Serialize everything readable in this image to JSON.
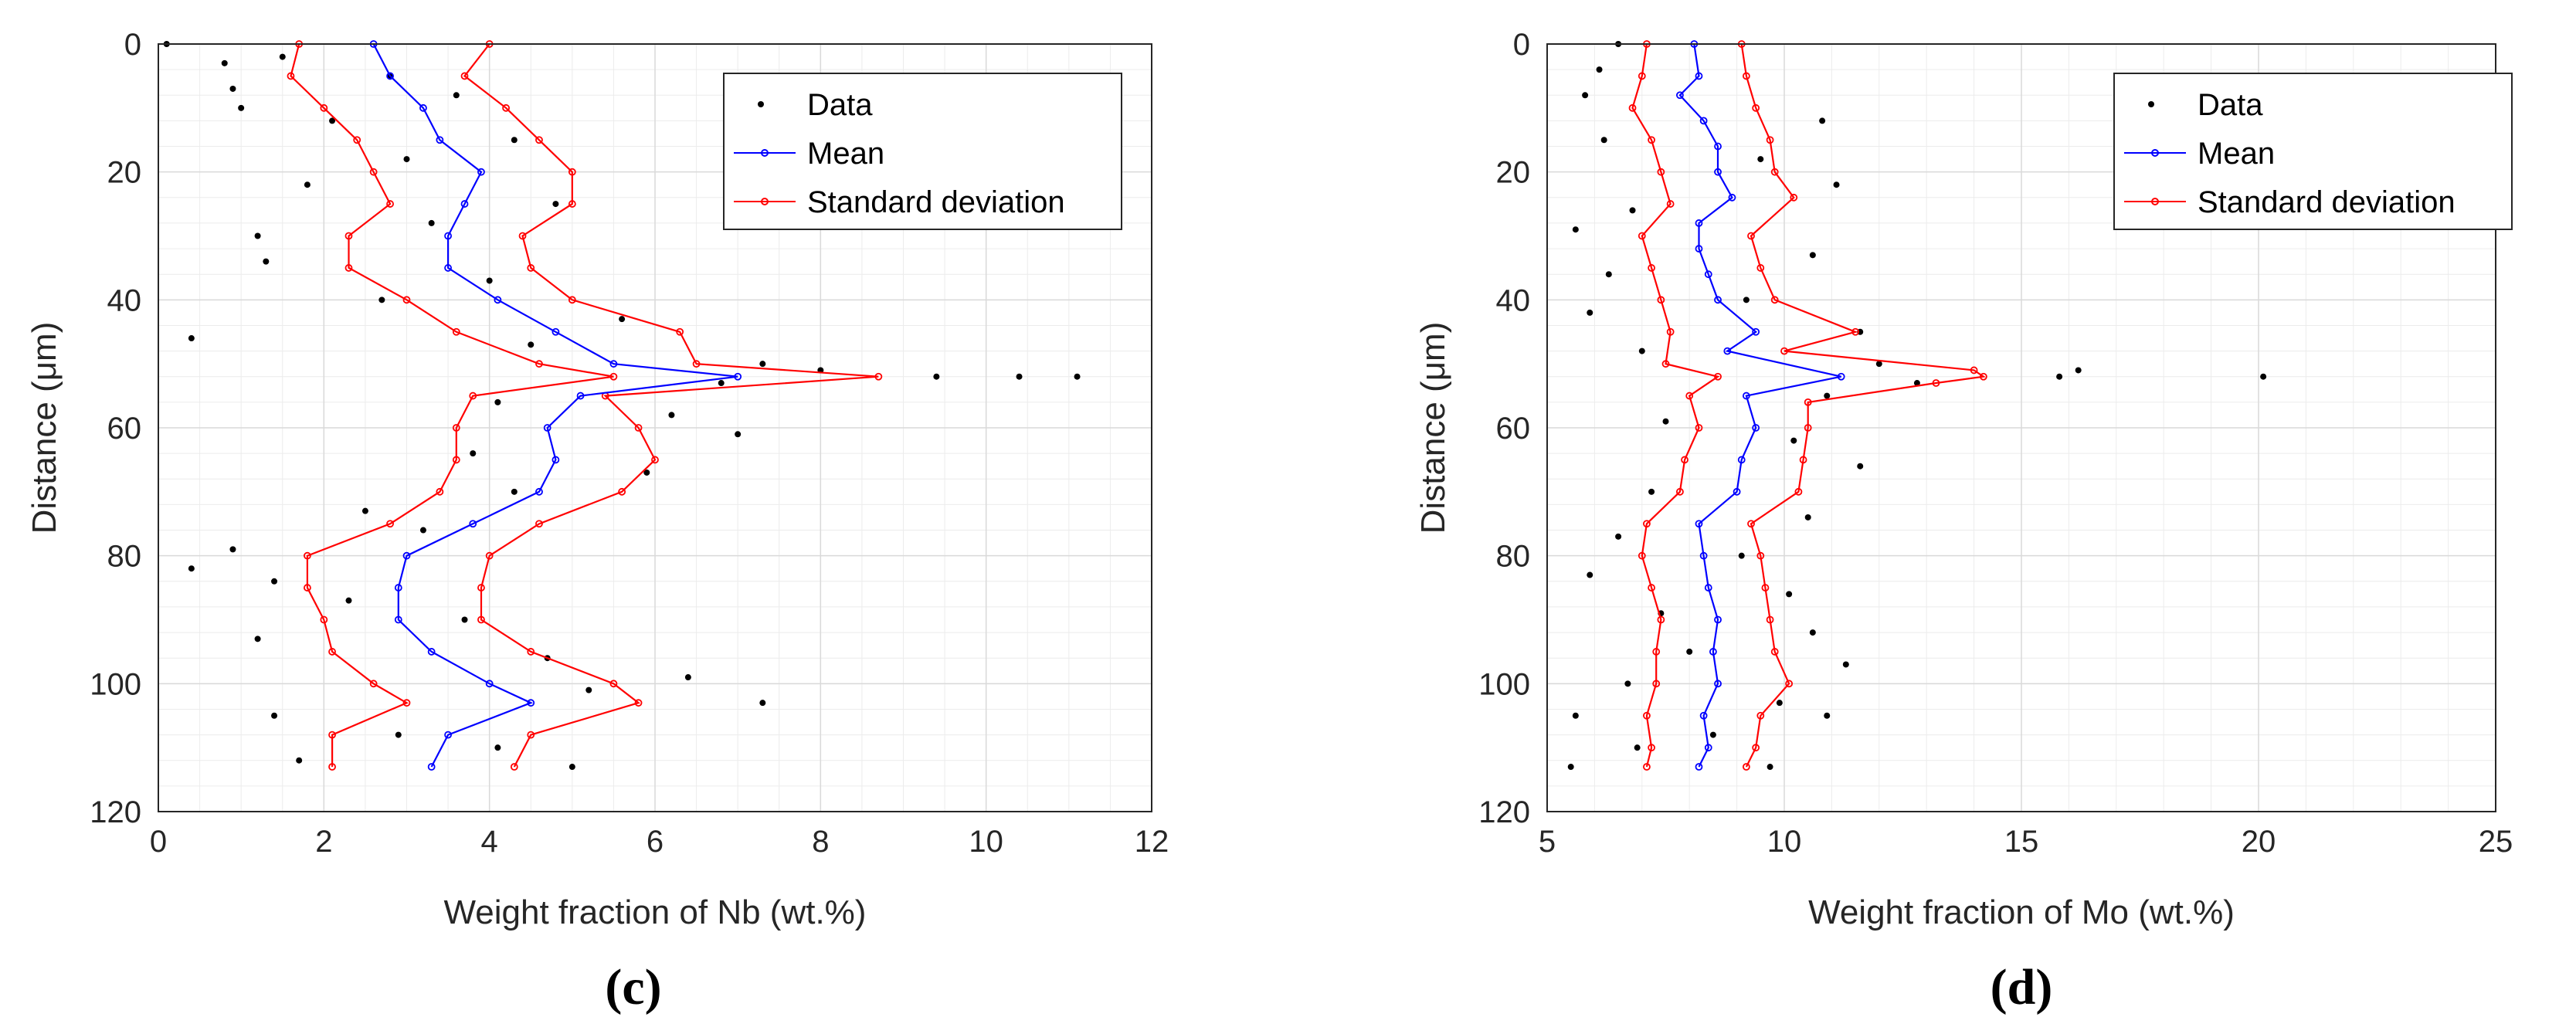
{
  "chart_data": [
    {
      "type": "scatter",
      "panel_label": "(c)",
      "xlabel": "Weight fraction of Nb (wt.%)",
      "ylabel": "Distance (μm)",
      "xlim": [
        0,
        12
      ],
      "ylim": [
        0,
        120
      ],
      "y_reversed": true,
      "xticks": [
        0,
        2,
        4,
        6,
        8,
        10,
        12
      ],
      "yticks": [
        0,
        20,
        40,
        60,
        80,
        100,
        120
      ],
      "grid": true,
      "minor_grid": true,
      "legend": {
        "location": "top-right",
        "entries": [
          "Data",
          "Mean",
          "Standard deviation"
        ]
      },
      "colors": {
        "data": "#000000",
        "mean": "#0000ff",
        "std": "#ff0000"
      },
      "mean_profile": [
        {
          "y": 0,
          "x": 2.6
        },
        {
          "y": 5,
          "x": 2.8
        },
        {
          "y": 10,
          "x": 3.2
        },
        {
          "y": 15,
          "x": 3.4
        },
        {
          "y": 20,
          "x": 3.9
        },
        {
          "y": 25,
          "x": 3.7
        },
        {
          "y": 30,
          "x": 3.5
        },
        {
          "y": 35,
          "x": 3.5
        },
        {
          "y": 40,
          "x": 4.1
        },
        {
          "y": 45,
          "x": 4.8
        },
        {
          "y": 50,
          "x": 5.5
        },
        {
          "y": 52,
          "x": 7.0
        },
        {
          "y": 55,
          "x": 5.1
        },
        {
          "y": 60,
          "x": 4.7
        },
        {
          "y": 65,
          "x": 4.8
        },
        {
          "y": 70,
          "x": 4.6
        },
        {
          "y": 75,
          "x": 3.8
        },
        {
          "y": 80,
          "x": 3.0
        },
        {
          "y": 85,
          "x": 2.9
        },
        {
          "y": 90,
          "x": 2.9
        },
        {
          "y": 95,
          "x": 3.3
        },
        {
          "y": 100,
          "x": 4.0
        },
        {
          "y": 103,
          "x": 4.5
        },
        {
          "y": 108,
          "x": 3.5
        },
        {
          "y": 113,
          "x": 3.3
        }
      ],
      "std_lower": [
        {
          "y": 0,
          "x": 1.7
        },
        {
          "y": 5,
          "x": 1.6
        },
        {
          "y": 10,
          "x": 2.0
        },
        {
          "y": 15,
          "x": 2.4
        },
        {
          "y": 20,
          "x": 2.6
        },
        {
          "y": 25,
          "x": 2.8
        },
        {
          "y": 30,
          "x": 2.3
        },
        {
          "y": 35,
          "x": 2.3
        },
        {
          "y": 40,
          "x": 3.0
        },
        {
          "y": 45,
          "x": 3.6
        },
        {
          "y": 50,
          "x": 4.6
        },
        {
          "y": 52,
          "x": 5.5
        },
        {
          "y": 55,
          "x": 3.8
        },
        {
          "y": 60,
          "x": 3.6
        },
        {
          "y": 65,
          "x": 3.6
        },
        {
          "y": 70,
          "x": 3.4
        },
        {
          "y": 75,
          "x": 2.8
        },
        {
          "y": 80,
          "x": 1.8
        },
        {
          "y": 85,
          "x": 1.8
        },
        {
          "y": 90,
          "x": 2.0
        },
        {
          "y": 95,
          "x": 2.1
        },
        {
          "y": 100,
          "x": 2.6
        },
        {
          "y": 103,
          "x": 3.0
        },
        {
          "y": 108,
          "x": 2.1
        },
        {
          "y": 113,
          "x": 2.1
        }
      ],
      "std_upper": [
        {
          "y": 0,
          "x": 4.0
        },
        {
          "y": 5,
          "x": 3.7
        },
        {
          "y": 10,
          "x": 4.2
        },
        {
          "y": 15,
          "x": 4.6
        },
        {
          "y": 20,
          "x": 5.0
        },
        {
          "y": 25,
          "x": 5.0
        },
        {
          "y": 30,
          "x": 4.4
        },
        {
          "y": 35,
          "x": 4.5
        },
        {
          "y": 40,
          "x": 5.0
        },
        {
          "y": 45,
          "x": 6.3
        },
        {
          "y": 50,
          "x": 6.5
        },
        {
          "y": 52,
          "x": 8.7
        },
        {
          "y": 55,
          "x": 5.4
        },
        {
          "y": 60,
          "x": 5.8
        },
        {
          "y": 65,
          "x": 6.0
        },
        {
          "y": 70,
          "x": 5.6
        },
        {
          "y": 75,
          "x": 4.6
        },
        {
          "y": 80,
          "x": 4.0
        },
        {
          "y": 85,
          "x": 3.9
        },
        {
          "y": 90,
          "x": 3.9
        },
        {
          "y": 95,
          "x": 4.5
        },
        {
          "y": 100,
          "x": 5.5
        },
        {
          "y": 103,
          "x": 5.8
        },
        {
          "y": 108,
          "x": 4.5
        },
        {
          "y": 113,
          "x": 4.3
        }
      ],
      "scatter": [
        {
          "y": 0,
          "x": 0.1
        },
        {
          "y": 3,
          "x": 0.8
        },
        {
          "y": 7,
          "x": 0.9
        },
        {
          "y": 10,
          "x": 1.0
        },
        {
          "y": 2,
          "x": 1.5
        },
        {
          "y": 5,
          "x": 2.8
        },
        {
          "y": 8,
          "x": 3.6
        },
        {
          "y": 12,
          "x": 2.1
        },
        {
          "y": 15,
          "x": 4.3
        },
        {
          "y": 18,
          "x": 3.0
        },
        {
          "y": 22,
          "x": 1.8
        },
        {
          "y": 25,
          "x": 4.8
        },
        {
          "y": 28,
          "x": 3.3
        },
        {
          "y": 30,
          "x": 1.2
        },
        {
          "y": 34,
          "x": 1.3
        },
        {
          "y": 37,
          "x": 4.0
        },
        {
          "y": 40,
          "x": 2.7
        },
        {
          "y": 43,
          "x": 5.6
        },
        {
          "y": 46,
          "x": 0.4
        },
        {
          "y": 47,
          "x": 4.5
        },
        {
          "y": 50,
          "x": 7.3
        },
        {
          "y": 51,
          "x": 8.0
        },
        {
          "y": 52,
          "x": 9.4
        },
        {
          "y": 52,
          "x": 10.4
        },
        {
          "y": 52,
          "x": 11.1
        },
        {
          "y": 53,
          "x": 6.8
        },
        {
          "y": 56,
          "x": 4.1
        },
        {
          "y": 58,
          "x": 6.2
        },
        {
          "y": 61,
          "x": 7.0
        },
        {
          "y": 64,
          "x": 3.8
        },
        {
          "y": 67,
          "x": 5.9
        },
        {
          "y": 70,
          "x": 4.3
        },
        {
          "y": 73,
          "x": 2.5
        },
        {
          "y": 76,
          "x": 3.2
        },
        {
          "y": 79,
          "x": 0.9
        },
        {
          "y": 82,
          "x": 0.4
        },
        {
          "y": 84,
          "x": 1.4
        },
        {
          "y": 87,
          "x": 2.3
        },
        {
          "y": 90,
          "x": 3.7
        },
        {
          "y": 93,
          "x": 1.2
        },
        {
          "y": 96,
          "x": 4.7
        },
        {
          "y": 99,
          "x": 6.4
        },
        {
          "y": 101,
          "x": 5.2
        },
        {
          "y": 103,
          "x": 7.3
        },
        {
          "y": 105,
          "x": 1.4
        },
        {
          "y": 108,
          "x": 2.9
        },
        {
          "y": 110,
          "x": 4.1
        },
        {
          "y": 112,
          "x": 1.7
        },
        {
          "y": 113,
          "x": 5.0
        }
      ]
    },
    {
      "type": "scatter",
      "panel_label": "(d)",
      "xlabel": "Weight fraction of Mo (wt.%)",
      "ylabel": "Distance (μm)",
      "xlim": [
        5,
        25
      ],
      "ylim": [
        0,
        120
      ],
      "y_reversed": true,
      "xticks": [
        5,
        10,
        15,
        20,
        25
      ],
      "yticks": [
        0,
        20,
        40,
        60,
        80,
        100,
        120
      ],
      "grid": true,
      "minor_grid": true,
      "legend": {
        "location": "top-right",
        "entries": [
          "Data",
          "Mean",
          "Standard deviation"
        ]
      },
      "colors": {
        "data": "#000000",
        "mean": "#0000ff",
        "std": "#ff0000"
      },
      "mean_profile": [
        {
          "y": 0,
          "x": 8.1
        },
        {
          "y": 5,
          "x": 8.2
        },
        {
          "y": 8,
          "x": 7.8
        },
        {
          "y": 12,
          "x": 8.3
        },
        {
          "y": 16,
          "x": 8.6
        },
        {
          "y": 20,
          "x": 8.6
        },
        {
          "y": 24,
          "x": 8.9
        },
        {
          "y": 28,
          "x": 8.2
        },
        {
          "y": 32,
          "x": 8.2
        },
        {
          "y": 36,
          "x": 8.4
        },
        {
          "y": 40,
          "x": 8.6
        },
        {
          "y": 45,
          "x": 9.4
        },
        {
          "y": 48,
          "x": 8.8
        },
        {
          "y": 52,
          "x": 11.2
        },
        {
          "y": 55,
          "x": 9.2
        },
        {
          "y": 60,
          "x": 9.4
        },
        {
          "y": 65,
          "x": 9.1
        },
        {
          "y": 70,
          "x": 9.0
        },
        {
          "y": 75,
          "x": 8.2
        },
        {
          "y": 80,
          "x": 8.3
        },
        {
          "y": 85,
          "x": 8.4
        },
        {
          "y": 90,
          "x": 8.6
        },
        {
          "y": 95,
          "x": 8.5
        },
        {
          "y": 100,
          "x": 8.6
        },
        {
          "y": 105,
          "x": 8.3
        },
        {
          "y": 110,
          "x": 8.4
        },
        {
          "y": 113,
          "x": 8.2
        }
      ],
      "std_lower": [
        {
          "y": 0,
          "x": 7.1
        },
        {
          "y": 5,
          "x": 7.0
        },
        {
          "y": 10,
          "x": 6.8
        },
        {
          "y": 15,
          "x": 7.2
        },
        {
          "y": 20,
          "x": 7.4
        },
        {
          "y": 25,
          "x": 7.6
        },
        {
          "y": 30,
          "x": 7.0
        },
        {
          "y": 35,
          "x": 7.2
        },
        {
          "y": 40,
          "x": 7.4
        },
        {
          "y": 45,
          "x": 7.6
        },
        {
          "y": 50,
          "x": 7.5
        },
        {
          "y": 52,
          "x": 8.6
        },
        {
          "y": 55,
          "x": 8.0
        },
        {
          "y": 60,
          "x": 8.2
        },
        {
          "y": 65,
          "x": 7.9
        },
        {
          "y": 70,
          "x": 7.8
        },
        {
          "y": 75,
          "x": 7.1
        },
        {
          "y": 80,
          "x": 7.0
        },
        {
          "y": 85,
          "x": 7.2
        },
        {
          "y": 90,
          "x": 7.4
        },
        {
          "y": 95,
          "x": 7.3
        },
        {
          "y": 100,
          "x": 7.3
        },
        {
          "y": 105,
          "x": 7.1
        },
        {
          "y": 110,
          "x": 7.2
        },
        {
          "y": 113,
          "x": 7.1
        }
      ],
      "std_upper": [
        {
          "y": 0,
          "x": 9.1
        },
        {
          "y": 5,
          "x": 9.2
        },
        {
          "y": 10,
          "x": 9.4
        },
        {
          "y": 15,
          "x": 9.7
        },
        {
          "y": 20,
          "x": 9.8
        },
        {
          "y": 24,
          "x": 10.2
        },
        {
          "y": 30,
          "x": 9.3
        },
        {
          "y": 35,
          "x": 9.5
        },
        {
          "y": 40,
          "x": 9.8
        },
        {
          "y": 45,
          "x": 11.5
        },
        {
          "y": 48,
          "x": 10.0
        },
        {
          "y": 51,
          "x": 14.0
        },
        {
          "y": 52,
          "x": 14.2
        },
        {
          "y": 53,
          "x": 13.2
        },
        {
          "y": 56,
          "x": 10.5
        },
        {
          "y": 60,
          "x": 10.5
        },
        {
          "y": 65,
          "x": 10.4
        },
        {
          "y": 70,
          "x": 10.3
        },
        {
          "y": 75,
          "x": 9.3
        },
        {
          "y": 80,
          "x": 9.5
        },
        {
          "y": 85,
          "x": 9.6
        },
        {
          "y": 90,
          "x": 9.7
        },
        {
          "y": 95,
          "x": 9.8
        },
        {
          "y": 100,
          "x": 10.1
        },
        {
          "y": 105,
          "x": 9.5
        },
        {
          "y": 110,
          "x": 9.4
        },
        {
          "y": 113,
          "x": 9.2
        }
      ],
      "scatter": [
        {
          "y": 0,
          "x": 6.5
        },
        {
          "y": 4,
          "x": 6.1
        },
        {
          "y": 8,
          "x": 5.8
        },
        {
          "y": 12,
          "x": 10.8
        },
        {
          "y": 15,
          "x": 6.2
        },
        {
          "y": 18,
          "x": 9.5
        },
        {
          "y": 22,
          "x": 11.1
        },
        {
          "y": 26,
          "x": 6.8
        },
        {
          "y": 29,
          "x": 5.6
        },
        {
          "y": 33,
          "x": 10.6
        },
        {
          "y": 36,
          "x": 6.3
        },
        {
          "y": 40,
          "x": 9.2
        },
        {
          "y": 42,
          "x": 5.9
        },
        {
          "y": 45,
          "x": 11.6
        },
        {
          "y": 48,
          "x": 7.0
        },
        {
          "y": 50,
          "x": 12.0
        },
        {
          "y": 51,
          "x": 16.2
        },
        {
          "y": 52,
          "x": 15.8
        },
        {
          "y": 52,
          "x": 20.1
        },
        {
          "y": 53,
          "x": 12.8
        },
        {
          "y": 55,
          "x": 10.9
        },
        {
          "y": 59,
          "x": 7.5
        },
        {
          "y": 62,
          "x": 10.2
        },
        {
          "y": 66,
          "x": 11.6
        },
        {
          "y": 70,
          "x": 7.2
        },
        {
          "y": 74,
          "x": 10.5
        },
        {
          "y": 77,
          "x": 6.5
        },
        {
          "y": 80,
          "x": 9.1
        },
        {
          "y": 83,
          "x": 5.9
        },
        {
          "y": 86,
          "x": 10.1
        },
        {
          "y": 89,
          "x": 7.4
        },
        {
          "y": 92,
          "x": 10.6
        },
        {
          "y": 95,
          "x": 8.0
        },
        {
          "y": 97,
          "x": 11.3
        },
        {
          "y": 100,
          "x": 6.7
        },
        {
          "y": 103,
          "x": 9.9
        },
        {
          "y": 105,
          "x": 5.6
        },
        {
          "y": 105,
          "x": 10.9
        },
        {
          "y": 108,
          "x": 8.5
        },
        {
          "y": 110,
          "x": 6.9
        },
        {
          "y": 113,
          "x": 5.5
        },
        {
          "y": 113,
          "x": 9.7
        }
      ]
    }
  ]
}
